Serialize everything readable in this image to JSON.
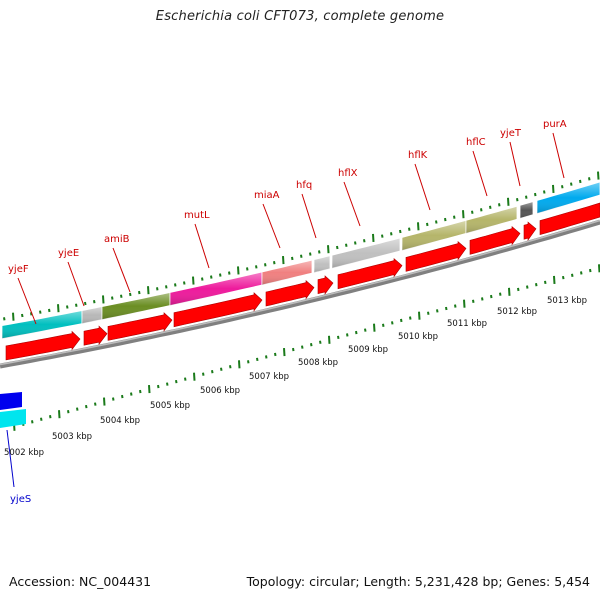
{
  "title": "Escherichia coli CFT073, complete genome",
  "footer": {
    "accession": "Accession: NC_004431",
    "summary": "Topology: circular; Length: 5,231,428 bp; Genes: 5,454"
  },
  "colors": {
    "label_red": "#cc0000",
    "label_blue": "#0000cc",
    "tick_green": "#1a7a1a",
    "backbone": "#808080",
    "orf_red": "#ff0000"
  },
  "scale_labels": [
    "5002 kbp",
    "5003 kbp",
    "5004 kbp",
    "5005 kbp",
    "5006 kbp",
    "5007 kbp",
    "5008 kbp",
    "5009 kbp",
    "5010 kbp",
    "5011 kbp",
    "5012 kbp",
    "5013 kbp"
  ],
  "genes": [
    {
      "name": "yjeF",
      "color": "#00bfbf",
      "strand": "forward"
    },
    {
      "name": "yjeE",
      "color": "#b8b8b8",
      "strand": "forward"
    },
    {
      "name": "amiB",
      "color": "#6b8e23",
      "strand": "forward"
    },
    {
      "name": "mutL",
      "color": "#ee1a9c",
      "strand": "forward"
    },
    {
      "name": "miaA",
      "color": "#f08080",
      "strand": "forward"
    },
    {
      "name": "hfq",
      "color": "#c0c0c0",
      "strand": "forward"
    },
    {
      "name": "hflX",
      "color": "#c0c0c0",
      "strand": "forward"
    },
    {
      "name": "hflK",
      "color": "#b5b56a",
      "strand": "forward"
    },
    {
      "name": "hflC",
      "color": "#b5b56a",
      "strand": "forward"
    },
    {
      "name": "yjeT",
      "color": "#555555",
      "strand": "forward"
    },
    {
      "name": "purA",
      "color": "#00aaee",
      "strand": "forward"
    },
    {
      "name": "yjeS",
      "color": "#00e5ee",
      "strand": "reverse"
    }
  ]
}
